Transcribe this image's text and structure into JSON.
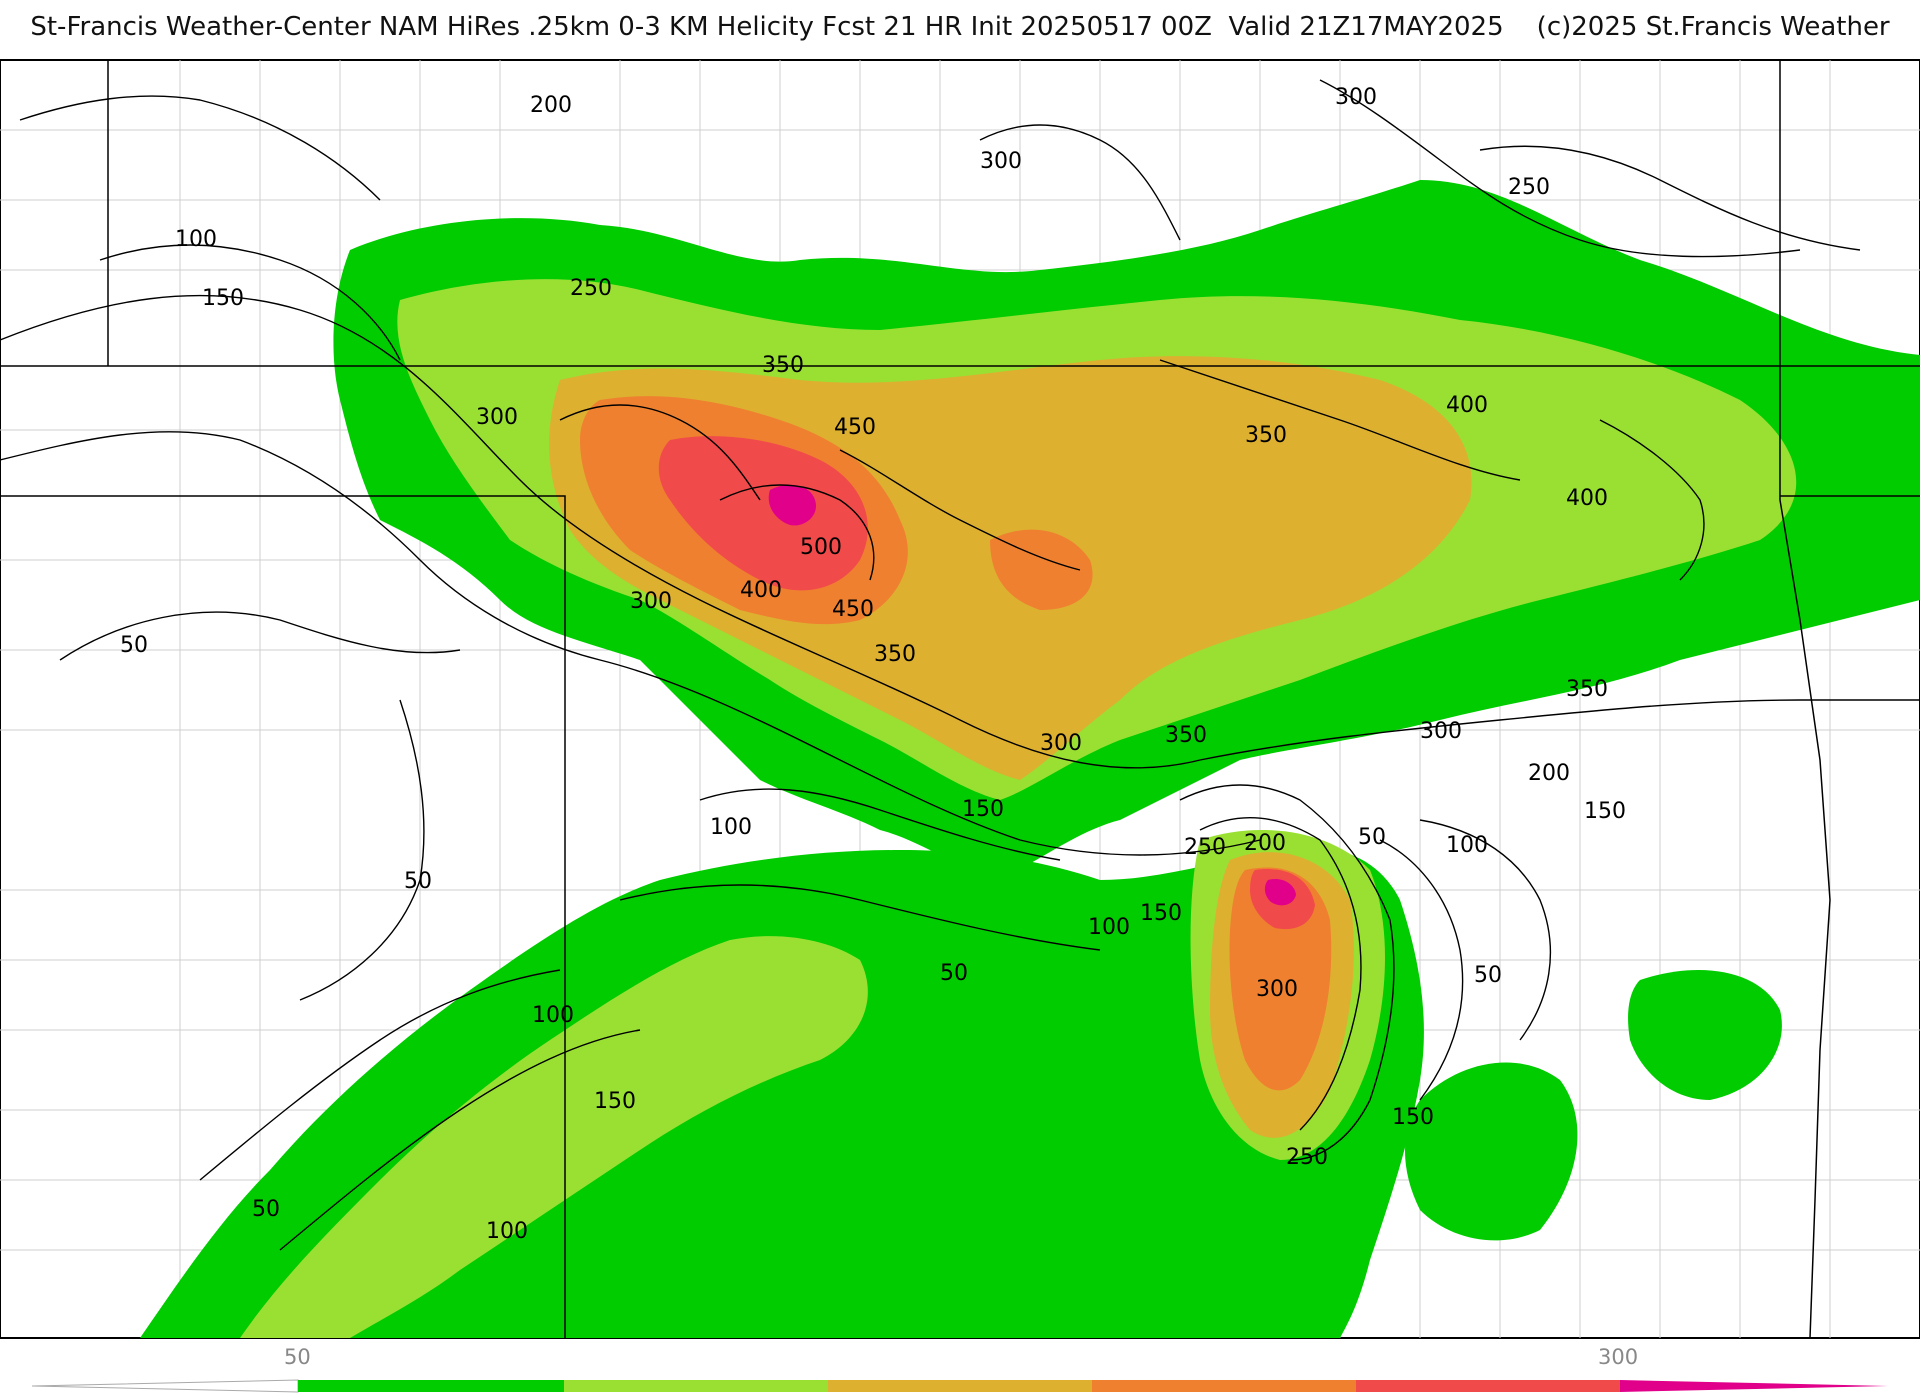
{
  "header": {
    "title": "St-Francis Weather-Center NAM HiRes .25km 0-3 KM Helicity Fcst 21 HR Init 20250517 00Z  Valid 21Z17MAY2025    (c)2025 St.Francis Weather"
  },
  "colors": {
    "band_50": "#00cc00",
    "band_100": "#99e033",
    "band_150": "#ddb030",
    "band_200": "#ef8030",
    "band_250": "#f04a4a",
    "band_300": "#e0008a",
    "contour": "#000000",
    "state_border": "#000000",
    "county_border": "#c8c8c8"
  },
  "contour_labels": [
    "200",
    "300",
    "300",
    "250",
    "100",
    "150",
    "250",
    "350",
    "450",
    "300",
    "350",
    "400",
    "400",
    "500",
    "400",
    "450",
    "300",
    "350",
    "50",
    "350",
    "300",
    "300",
    "350",
    "200",
    "150",
    "150",
    "100",
    "250",
    "200",
    "50",
    "100",
    "50",
    "150",
    "100",
    "50",
    "50",
    "300",
    "100",
    "150",
    "150",
    "50",
    "100",
    "250"
  ],
  "colorbar": {
    "min_label": "50",
    "max_label": "300"
  }
}
